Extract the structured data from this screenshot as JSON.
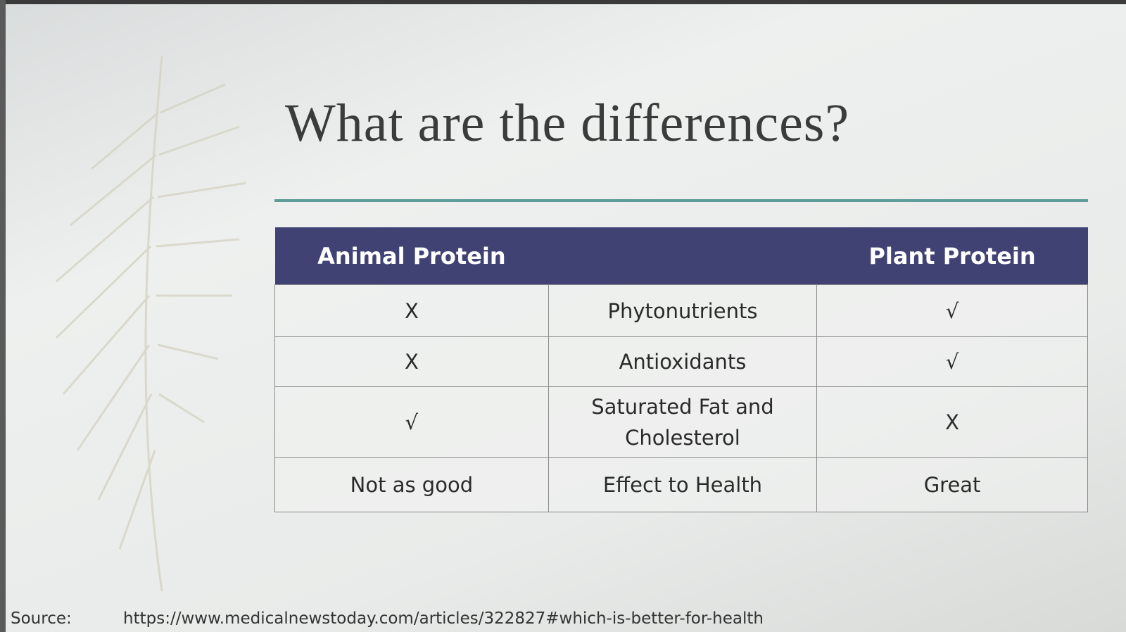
{
  "slide": {
    "title": "What are the differences?",
    "table": {
      "header": [
        "Animal Protein",
        "Plant Protein"
      ],
      "rows": [
        [
          "X",
          "Phytonutrients",
          "√"
        ],
        [
          "X",
          "Antioxidants",
          "√"
        ],
        [
          "√",
          "Saturated Fat and Cholesterol",
          "X"
        ],
        [
          "Not as good",
          "Effect to Health",
          "Great"
        ]
      ]
    },
    "source": {
      "label": "Source:",
      "url": "https://www.medicalnewstoday.com/articles/322827#which-is-better-for-health"
    }
  }
}
